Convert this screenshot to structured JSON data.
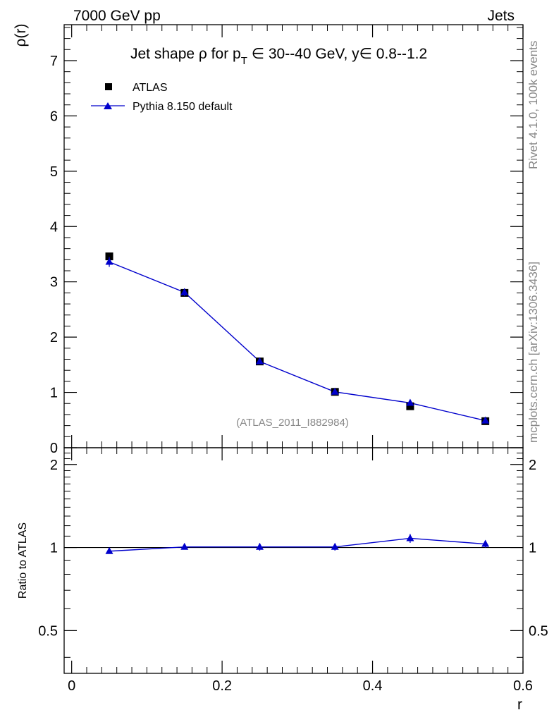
{
  "header": {
    "left": "7000 GeV pp",
    "right": "Jets"
  },
  "title": {
    "main": "Jet shape ρ for p",
    "sub": "T",
    "rest": " ∈ 30--40 GeV, y∈ 0.8--1.2"
  },
  "side_labels": {
    "top": "Rivet 4.1.0,  100k events",
    "bottom": "mcplots.cern.ch [arXiv:1306.3436]"
  },
  "analysis_id": "(ATLAS_2011_I882984)",
  "legend": {
    "data_label": "ATLAS",
    "mc_label": "Pythia 8.150 default"
  },
  "colors": {
    "data": "#000000",
    "mc": "#0000cc"
  },
  "chart_data": [
    {
      "type": "scatter",
      "panel": "main",
      "ylabel": "ρ(r)",
      "xlabel": "r",
      "xlim": [
        -0.01,
        0.6
      ],
      "ylim": [
        0,
        7.65
      ],
      "yticks": [
        0,
        1,
        2,
        3,
        4,
        5,
        6,
        7
      ],
      "ytick_labels": [
        "0",
        "1",
        "2",
        "3",
        "4",
        "5",
        "6",
        "7"
      ],
      "series": [
        {
          "name": "ATLAS",
          "marker": "square",
          "x": [
            0.05,
            0.15,
            0.25,
            0.35,
            0.45,
            0.55
          ],
          "y": [
            3.46,
            2.8,
            1.56,
            1.01,
            0.75,
            0.48
          ],
          "err": [
            0.05,
            0.06,
            0.03,
            0.02,
            0.02,
            0.01
          ]
        },
        {
          "name": "Pythia 8.150 default",
          "marker": "triangle",
          "line": true,
          "x": [
            0.05,
            0.15,
            0.25,
            0.35,
            0.45,
            0.55
          ],
          "y": [
            3.36,
            2.81,
            1.56,
            1.01,
            0.81,
            0.49
          ],
          "err": [
            0.09,
            0.07,
            0.03,
            0.02,
            0.02,
            0.01
          ]
        }
      ]
    },
    {
      "type": "line",
      "panel": "ratio",
      "ylabel": "Ratio to ATLAS",
      "xlabel": "r",
      "xlim": [
        -0.01,
        0.6
      ],
      "ylim": [
        0.35,
        2.3
      ],
      "yscale": "log",
      "yticks": [
        0.5,
        1,
        2
      ],
      "ytick_labels": [
        "0.5",
        "1",
        "2"
      ],
      "xticks": [
        0,
        0.2,
        0.4,
        0.6
      ],
      "xtick_labels": [
        "0",
        "0.2",
        "0.4",
        "0.6"
      ],
      "reference": 1,
      "series": [
        {
          "name": "Pythia 8.150 default",
          "x": [
            0.05,
            0.15,
            0.25,
            0.35,
            0.45,
            0.55
          ],
          "y": [
            0.97,
            1.005,
            1.005,
            1.005,
            1.08,
            1.03
          ],
          "err": [
            0.02,
            0.02,
            0.03,
            0.03,
            0.04,
            0.03
          ]
        }
      ]
    }
  ]
}
